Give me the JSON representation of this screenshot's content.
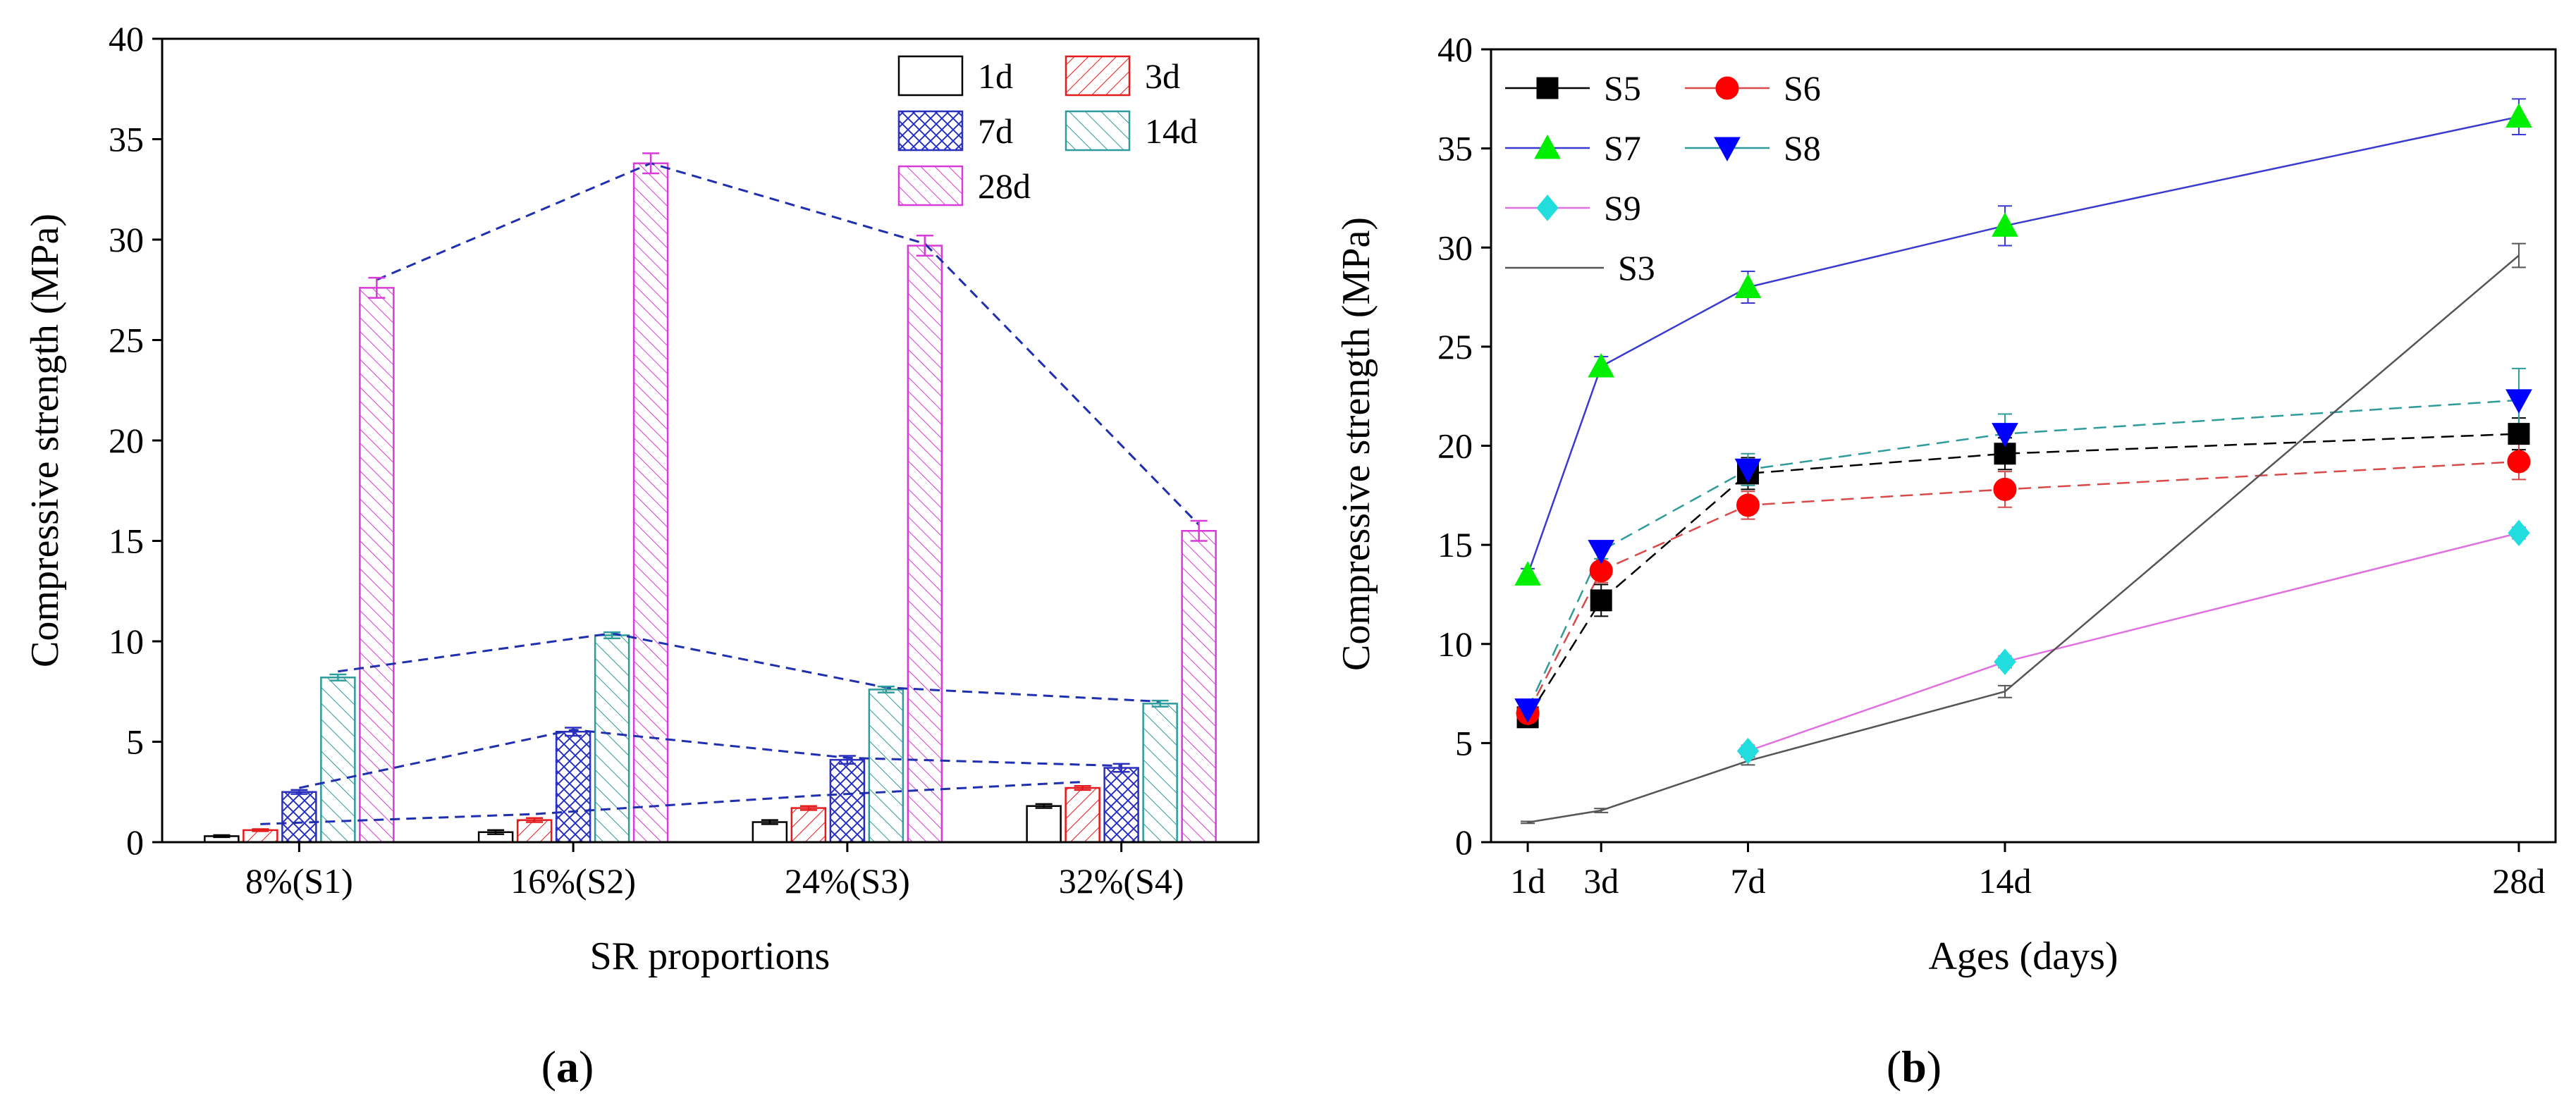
{
  "panels": [
    {
      "label_open": "(",
      "label_letter": "a",
      "label_close": ")"
    },
    {
      "label_open": "(",
      "label_letter": "b",
      "label_close": ")"
    }
  ],
  "chart_data": [
    {
      "type": "bar",
      "title": "",
      "xlabel": "SR proportions",
      "ylabel": "Compressive strength (MPa)",
      "ylim": [
        0,
        40
      ],
      "yticks": [
        0,
        5,
        10,
        15,
        20,
        25,
        30,
        35,
        40
      ],
      "categories": [
        "8%(S1)",
        "16%(S2)",
        "24%(S3)",
        "32%(S4)"
      ],
      "legend_position": "top-right",
      "series": [
        {
          "name": "1d",
          "values": [
            0.3,
            0.5,
            1.0,
            1.8
          ],
          "errors": [
            0.05,
            0.1,
            0.1,
            0.1
          ],
          "color": "#000000",
          "pattern": "none"
        },
        {
          "name": "3d",
          "values": [
            0.6,
            1.1,
            1.7,
            2.7
          ],
          "errors": [
            0.05,
            0.1,
            0.1,
            0.1
          ],
          "color": "#e41a1c",
          "pattern": "diag-right"
        },
        {
          "name": "7d",
          "values": [
            2.5,
            5.5,
            4.1,
            3.7
          ],
          "errors": [
            0.1,
            0.2,
            0.2,
            0.2
          ],
          "color": "#2a2fbf",
          "pattern": "cross"
        },
        {
          "name": "14d",
          "values": [
            8.2,
            10.3,
            7.6,
            6.9
          ],
          "errors": [
            0.15,
            0.15,
            0.15,
            0.15
          ],
          "color": "#2e9c9a",
          "pattern": "diag-left"
        },
        {
          "name": "28d",
          "values": [
            27.6,
            33.8,
            29.7,
            15.5
          ],
          "errors": [
            0.5,
            0.5,
            0.5,
            0.5
          ],
          "color": "#d83bd8",
          "pattern": "diag-left"
        }
      ],
      "trend_lines": [
        {
          "series": "3d",
          "values": [
            0.9,
            1.4,
            2.3,
            3.0
          ]
        },
        {
          "series": "7d",
          "values": [
            2.7,
            5.6,
            4.2,
            3.8
          ]
        },
        {
          "series": "14d",
          "values": [
            8.5,
            10.4,
            7.7,
            7.0
          ]
        },
        {
          "series": "28d",
          "values": [
            28.0,
            33.8,
            29.8,
            15.8
          ]
        }
      ],
      "trend_color": "#1f2fb0"
    },
    {
      "type": "line",
      "title": "",
      "xlabel": "Ages (days)",
      "ylabel": "Compressive strength (MPa)",
      "ylim": [
        0,
        40
      ],
      "xlim": [
        0,
        29
      ],
      "yticks": [
        0,
        5,
        10,
        15,
        20,
        25,
        30,
        35,
        40
      ],
      "x": [
        1,
        3,
        7,
        14,
        28
      ],
      "x_labels": [
        "1d",
        "3d",
        "7d",
        "14d",
        "28d"
      ],
      "legend_position": "top-left",
      "series": [
        {
          "name": "S5",
          "values": [
            6.3,
            12.2,
            18.6,
            19.6,
            20.6
          ],
          "errors": [
            0.5,
            0.8,
            0.8,
            0.8,
            0.8
          ],
          "color": "#000000",
          "marker": "square",
          "line_color": "#000000",
          "dash": true
        },
        {
          "name": "S6",
          "values": [
            6.5,
            13.7,
            17.0,
            17.8,
            19.2
          ],
          "errors": [
            0.5,
            0.6,
            0.7,
            0.9,
            0.9
          ],
          "color": "#ff0000",
          "marker": "circle",
          "line_color": "#d84a4a",
          "dash": true
        },
        {
          "name": "S7",
          "values": [
            13.5,
            24.0,
            28.0,
            31.1,
            36.6
          ],
          "errors": [
            0.3,
            0.5,
            0.8,
            1.0,
            0.9
          ],
          "color": "#00ee00",
          "marker": "triangle-up",
          "line_color": "#3a3ad0",
          "dash": false
        },
        {
          "name": "S8",
          "values": [
            6.7,
            14.7,
            18.8,
            20.6,
            22.3
          ],
          "errors": [
            0.3,
            0.4,
            0.8,
            1.0,
            1.6
          ],
          "color": "#0000ff",
          "marker": "triangle-down",
          "line_color": "#2e9c9a",
          "dash": true
        },
        {
          "name": "S9",
          "values": [
            null,
            null,
            4.6,
            9.1,
            15.6
          ],
          "errors": [
            null,
            null,
            0.3,
            0.3,
            0.3
          ],
          "color": "#22dddd",
          "marker": "diamond",
          "line_color": "#e070e0",
          "dash": false
        },
        {
          "name": "S3",
          "values": [
            1.0,
            1.6,
            4.1,
            7.6,
            29.6
          ],
          "errors": [
            0.05,
            0.1,
            0.2,
            0.3,
            0.6
          ],
          "color": "#000000",
          "marker": "none",
          "line_color": "#555555",
          "dash": false
        }
      ]
    }
  ]
}
